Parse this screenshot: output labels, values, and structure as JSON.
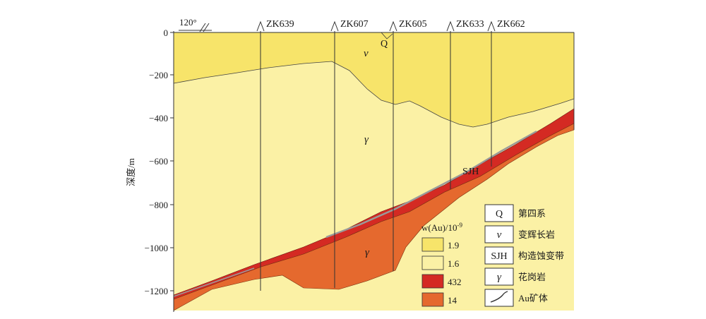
{
  "y_axis": {
    "label": "深度/m",
    "ticks": [
      "0",
      "−200",
      "−400",
      "−600",
      "−800",
      "−1000",
      "−1200"
    ]
  },
  "strike": {
    "label": "120°"
  },
  "drillholes": [
    {
      "name": "ZK639"
    },
    {
      "name": "ZK607"
    },
    {
      "name": "ZK605"
    },
    {
      "name": "ZK633"
    },
    {
      "name": "ZK662"
    }
  ],
  "map_labels": {
    "q_label": "Q",
    "v_label": "v",
    "gamma_upper": "γ",
    "gamma_lower": "γ",
    "sjh_label": "SJH"
  },
  "au_legend": {
    "title": "w(Au)/10",
    "title_exp": "-9",
    "items": [
      {
        "value": "1.9",
        "color": "#f7e46a"
      },
      {
        "value": "1.6",
        "color": "#fbf1a5"
      },
      {
        "value": "432",
        "color": "#d42a23"
      },
      {
        "value": "14",
        "color": "#e5692e"
      }
    ]
  },
  "lith_legend": [
    {
      "symbol": "Q",
      "label": "第四系"
    },
    {
      "symbol": "v",
      "label": "变辉长岩"
    },
    {
      "symbol": "SJH",
      "label": "构造蚀变带"
    },
    {
      "symbol": "γ",
      "label": "花岗岩"
    },
    {
      "symbol": "",
      "label": "Au矿体"
    }
  ],
  "colors": {
    "gabbro": "#f7e46a",
    "granite_upper": "#fbf1a5",
    "alteration": "#d42a23",
    "granite_lower": "#e5692e",
    "orebody": "#9a9a9a"
  }
}
